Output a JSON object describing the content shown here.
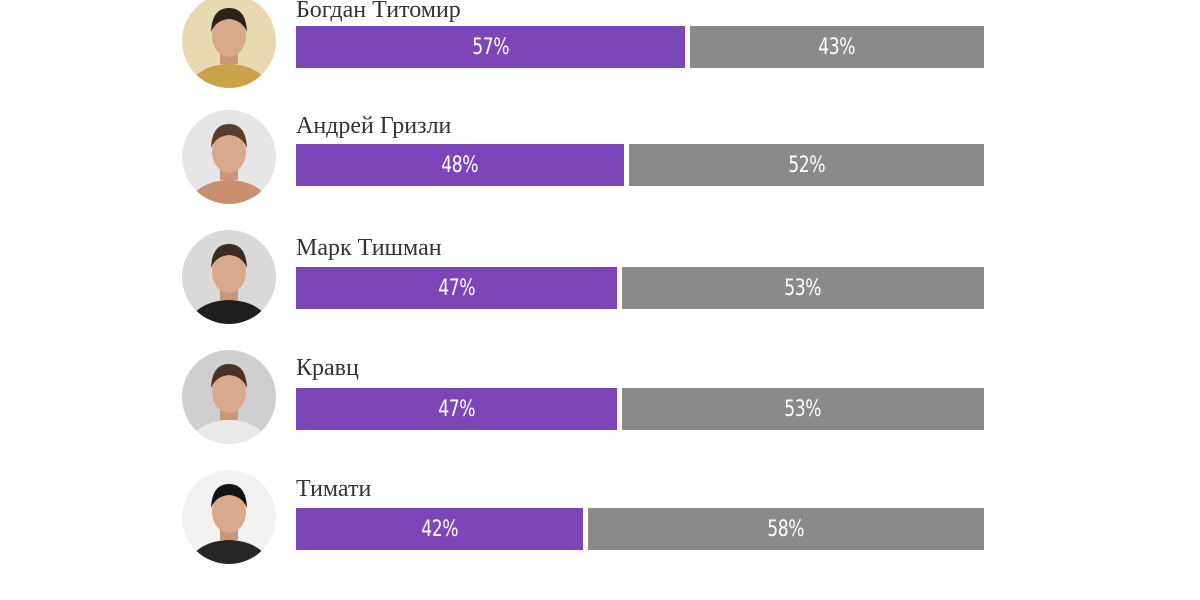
{
  "colors": {
    "yes": "#7c46b8",
    "no": "#8a8a8a"
  },
  "chart_data": {
    "type": "bar",
    "stacked": true,
    "orientation": "horizontal",
    "categories": [
      "Богдан Титомир",
      "Андрей Гризли",
      "Марк Тишман",
      "Кравц",
      "Тимати"
    ],
    "series": [
      {
        "values": [
          57,
          48,
          47,
          47,
          42
        ],
        "labels": [
          "57%",
          "48%",
          "47%",
          "47%",
          "42%"
        ]
      },
      {
        "values": [
          43,
          52,
          53,
          53,
          58
        ],
        "labels": [
          "43%",
          "52%",
          "53%",
          "53%",
          "58%"
        ]
      }
    ],
    "unit": "%"
  }
}
